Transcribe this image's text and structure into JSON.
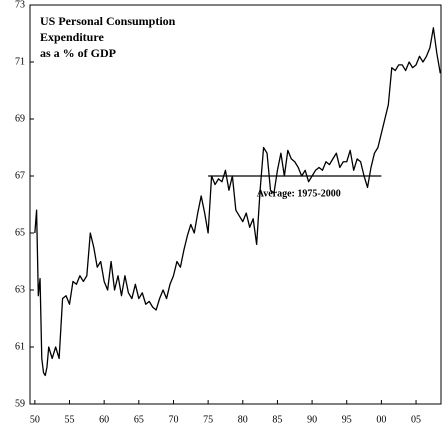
{
  "chart_data": {
    "type": "line",
    "title": [
      "US Personal Consumption",
      "Expenditure",
      "as a % of GDP"
    ],
    "x": [
      1950.0,
      1950.25,
      1950.5,
      1950.75,
      1951.0,
      1951.25,
      1951.5,
      1951.75,
      1952.0,
      1952.5,
      1953.0,
      1953.5,
      1954.0,
      1954.5,
      1955.0,
      1955.5,
      1956.0,
      1956.5,
      1957.0,
      1957.5,
      1958.0,
      1958.5,
      1959.0,
      1959.5,
      1960.0,
      1960.5,
      1961.0,
      1961.5,
      1962.0,
      1962.5,
      1963.0,
      1963.5,
      1964.0,
      1964.5,
      1965.0,
      1965.5,
      1966.0,
      1966.5,
      1967.0,
      1967.5,
      1968.0,
      1968.5,
      1969.0,
      1969.5,
      1970.0,
      1970.5,
      1971.0,
      1971.5,
      1972.0,
      1972.5,
      1973.0,
      1973.5,
      1974.0,
      1974.5,
      1975.0,
      1975.5,
      1976.0,
      1976.5,
      1977.0,
      1977.5,
      1978.0,
      1978.5,
      1979.0,
      1979.5,
      1980.0,
      1980.5,
      1981.0,
      1981.5,
      1982.0,
      1982.5,
      1983.0,
      1983.5,
      1984.0,
      1984.5,
      1985.0,
      1985.5,
      1986.0,
      1986.5,
      1987.0,
      1987.5,
      1988.0,
      1988.5,
      1989.0,
      1989.5,
      1990.0,
      1990.5,
      1991.0,
      1991.5,
      1992.0,
      1992.5,
      1993.0,
      1993.5,
      1994.0,
      1994.5,
      1995.0,
      1995.5,
      1996.0,
      1996.5,
      1997.0,
      1997.5,
      1998.0,
      1998.5,
      1999.0,
      1999.5,
      2000.0,
      2000.5,
      2001.0,
      2001.5,
      2002.0,
      2002.5,
      2003.0,
      2003.5,
      2004.0,
      2004.5,
      2005.0,
      2005.5,
      2006.0,
      2006.5,
      2007.0,
      2007.5,
      2008.0,
      2008.5
    ],
    "series": [
      {
        "color": "#000000",
        "values": [
          65.0,
          65.8,
          62.8,
          63.4,
          60.6,
          60.1,
          60.0,
          60.3,
          61.0,
          60.6,
          61.0,
          60.6,
          62.7,
          62.8,
          62.5,
          63.3,
          63.2,
          63.5,
          63.3,
          63.5,
          65.0,
          64.5,
          63.8,
          64.0,
          63.3,
          63.0,
          64.0,
          63.0,
          63.5,
          62.8,
          63.5,
          62.9,
          62.7,
          63.2,
          62.7,
          62.9,
          62.5,
          62.6,
          62.4,
          62.3,
          62.7,
          63.0,
          62.7,
          63.2,
          63.5,
          64.0,
          63.8,
          64.4,
          64.9,
          65.3,
          65.0,
          65.7,
          66.3,
          65.7,
          65.0,
          67.0,
          66.7,
          66.9,
          66.8,
          67.2,
          66.5,
          67.0,
          65.8,
          65.6,
          65.4,
          65.7,
          65.2,
          65.5,
          64.6,
          66.5,
          68.0,
          67.8,
          66.5,
          66.4,
          67.2,
          67.8,
          67.0,
          67.9,
          67.6,
          67.5,
          67.3,
          67.0,
          67.2,
          66.8,
          67.0,
          67.2,
          67.3,
          67.2,
          67.5,
          67.4,
          67.6,
          67.8,
          67.3,
          67.5,
          67.5,
          67.9,
          67.2,
          67.6,
          67.5,
          67.0,
          66.6,
          67.3,
          67.8,
          68.0,
          68.5,
          69.0,
          69.5,
          70.8,
          70.7,
          70.9,
          70.9,
          70.7,
          71.0,
          70.8,
          70.9,
          71.2,
          71.0,
          71.2,
          71.5,
          72.2,
          71.3,
          70.6
        ]
      }
    ],
    "reference_line": {
      "value": 67,
      "x": [
        1975,
        2000
      ],
      "label": "Average: 1975-2000"
    },
    "xlim": [
      1949.3,
      2008.6
    ],
    "xticks": [
      {
        "value": 1950,
        "label": "50"
      },
      {
        "value": 1955,
        "label": "55"
      },
      {
        "value": 1960,
        "label": "60"
      },
      {
        "value": 1965,
        "label": "65"
      },
      {
        "value": 1970,
        "label": "70"
      },
      {
        "value": 1975,
        "label": "75"
      },
      {
        "value": 1980,
        "label": "80"
      },
      {
        "value": 1985,
        "label": "85"
      },
      {
        "value": 1990,
        "label": "90"
      },
      {
        "value": 1995,
        "label": "95"
      },
      {
        "value": 2000,
        "label": "00"
      },
      {
        "value": 2005,
        "label": "05"
      }
    ],
    "ylim": [
      59,
      73
    ],
    "yticks": [
      59,
      61,
      63,
      65,
      67,
      69,
      71,
      73
    ]
  }
}
